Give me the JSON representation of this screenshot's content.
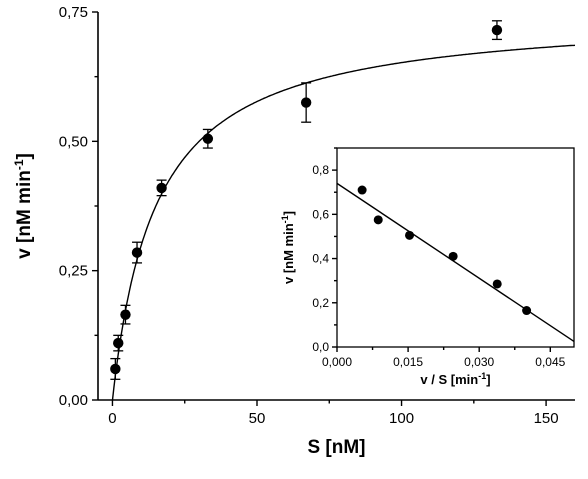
{
  "chart_data": [
    {
      "id": "main",
      "type": "scatter",
      "xlabel": "S [nM]",
      "ylabel_main": "v [nM min",
      "ylabel_sup": "-1",
      "ylabel_close": "]",
      "xlim": [
        -5,
        160
      ],
      "ylim": [
        0,
        0.75
      ],
      "xticks": [
        0,
        50,
        100,
        150
      ],
      "xtick_labels": [
        "0",
        "50",
        "100",
        "150"
      ],
      "yticks": [
        0,
        0.25,
        0.5,
        0.75
      ],
      "ytick_labels": [
        "0,00",
        "0,25",
        "0,50",
        "0,75"
      ],
      "series": [
        {
          "x": [
            1,
            2,
            4.5,
            8.5,
            17,
            33,
            67,
            133
          ],
          "y": [
            0.06,
            0.11,
            0.165,
            0.285,
            0.41,
            0.505,
            0.575,
            0.715
          ],
          "err": [
            0.02,
            0.015,
            0.018,
            0.02,
            0.015,
            0.018,
            0.038,
            0.018
          ]
        }
      ],
      "fit": {
        "model": "michaelis-menten",
        "vmax": 0.75,
        "km": 15
      }
    },
    {
      "id": "inset",
      "type": "scatter",
      "xlabel_main": "v / S [min",
      "xlabel_sup": "-1",
      "xlabel_close": "]",
      "ylabel_main": "v [nM min",
      "ylabel_sup": "-1",
      "ylabel_close": "]",
      "xlim": [
        0,
        0.05
      ],
      "ylim": [
        0,
        0.9
      ],
      "xticks": [
        0,
        0.015,
        0.03,
        0.045
      ],
      "xtick_labels": [
        "0,000",
        "0,015",
        "0,030",
        "0,045"
      ],
      "yticks": [
        0,
        0.2,
        0.4,
        0.6,
        0.8
      ],
      "ytick_labels": [
        "0,0",
        "0,2",
        "0,4",
        "0,6",
        "0,8"
      ],
      "series": [
        {
          "x": [
            0.0053,
            0.0087,
            0.0153,
            0.0245,
            0.0338,
            0.04
          ],
          "y": [
            0.71,
            0.575,
            0.505,
            0.41,
            0.285,
            0.165
          ]
        }
      ],
      "fit": {
        "model": "linear",
        "x": [
          0,
          0.05
        ],
        "y": [
          0.74,
          0.025
        ]
      }
    }
  ]
}
